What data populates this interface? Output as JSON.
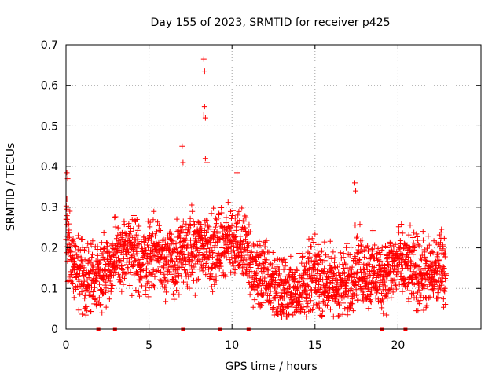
{
  "chart_data": {
    "type": "scatter",
    "title": "Day 155 of 2023, SRMTID for receiver p425",
    "xlabel": "GPS time / hours",
    "ylabel": "SRMTID / TECUs",
    "xlim": [
      0,
      25
    ],
    "ylim": [
      0,
      0.7
    ],
    "x_ticks": [
      0,
      5,
      10,
      15,
      20
    ],
    "x_tick_labels": [
      "0",
      "5",
      "10",
      "15",
      "20"
    ],
    "y_ticks": [
      0,
      0.1,
      0.2,
      0.3,
      0.4,
      0.5,
      0.6,
      0.7
    ],
    "y_tick_labels": [
      "0",
      "0.1",
      "0.2",
      "0.3",
      "0.4",
      "0.5",
      "0.6",
      "0.7"
    ],
    "grid": true,
    "marker": "+",
    "color": "#ff0000",
    "x_range_of_data": [
      0,
      22.9
    ],
    "trend": {
      "x": [
        0,
        0.3,
        1,
        2,
        3,
        3.7,
        4.5,
        5.5,
        6.5,
        7.2,
        8,
        8.5,
        9,
        9.6,
        10.2,
        10.8,
        11.2,
        12,
        13,
        14,
        15,
        16,
        17,
        17.4,
        18,
        19,
        20,
        21,
        22,
        22.9
      ],
      "y": [
        0.25,
        0.17,
        0.12,
        0.14,
        0.17,
        0.19,
        0.17,
        0.19,
        0.16,
        0.19,
        0.2,
        0.21,
        0.19,
        0.22,
        0.22,
        0.2,
        0.14,
        0.13,
        0.09,
        0.1,
        0.13,
        0.11,
        0.11,
        0.16,
        0.14,
        0.13,
        0.16,
        0.14,
        0.13,
        0.16
      ]
    },
    "notable_points": [
      {
        "x": 0.05,
        "y": 0.385
      },
      {
        "x": 0.1,
        "y": 0.37
      },
      {
        "x": 0.05,
        "y": 0.32
      },
      {
        "x": 3.5,
        "y": 0.265
      },
      {
        "x": 7.0,
        "y": 0.45
      },
      {
        "x": 7.05,
        "y": 0.41
      },
      {
        "x": 8.3,
        "y": 0.665
      },
      {
        "x": 8.35,
        "y": 0.635
      },
      {
        "x": 8.35,
        "y": 0.548
      },
      {
        "x": 8.3,
        "y": 0.527
      },
      {
        "x": 8.4,
        "y": 0.52
      },
      {
        "x": 8.4,
        "y": 0.42
      },
      {
        "x": 8.5,
        "y": 0.41
      },
      {
        "x": 10.3,
        "y": 0.385
      },
      {
        "x": 17.4,
        "y": 0.36
      },
      {
        "x": 17.45,
        "y": 0.34
      },
      {
        "x": 13.0,
        "y": 0.03
      }
    ],
    "baseline_markers_x": [
      1.95,
      2.95,
      7.05,
      9.3,
      11.0,
      19.05,
      20.45
    ]
  }
}
